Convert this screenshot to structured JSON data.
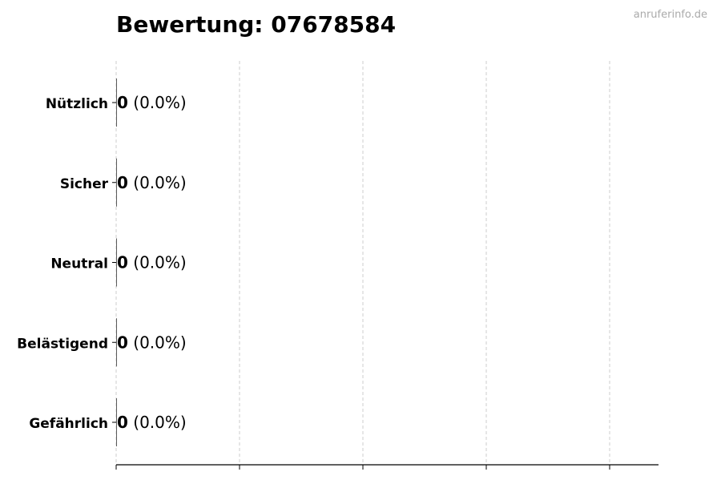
{
  "watermark": "anruferinfo.de",
  "chart_data": {
    "type": "bar",
    "orientation": "horizontal",
    "title": "Bewertung: 07678584",
    "categories": [
      "Nützlich",
      "Sicher",
      "Neutral",
      "Belästigend",
      "Gefährlich"
    ],
    "values": [
      0,
      0,
      0,
      0,
      0
    ],
    "labels": [
      "(0.0%)",
      "(0.0%)",
      "(0.0%)",
      "(0.0%)",
      "(0.0%)"
    ],
    "xlabel": "",
    "ylabel": "",
    "grid": "x-dashed",
    "x_tick_labels_shown": false,
    "colors": {
      "text": "#000000",
      "grid": "#cccccc",
      "watermark": "#aaaaaa",
      "bar_edge": "#333333"
    }
  }
}
